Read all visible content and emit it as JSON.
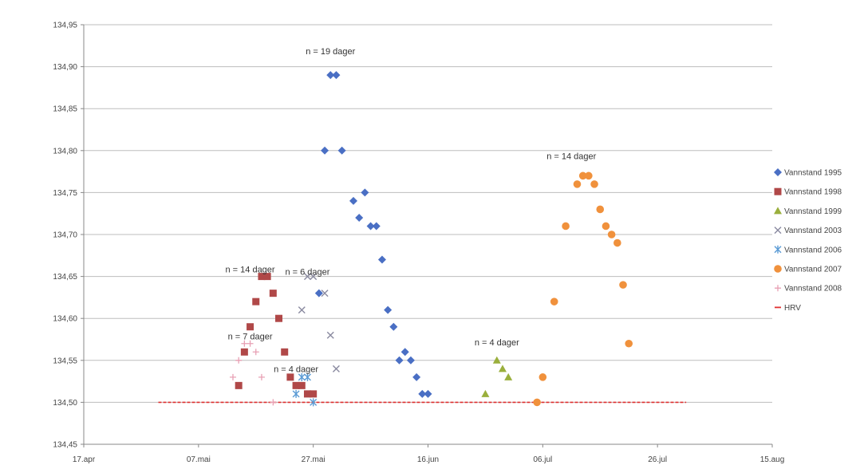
{
  "chart_data": {
    "type": "scatter",
    "title": "",
    "xlabel": "",
    "ylabel": "",
    "x_axis": {
      "type": "date",
      "min": "04-17",
      "max": "08-15",
      "ticks": [
        "17.apr",
        "07.mai",
        "27.mai",
        "16.jun",
        "06.jul",
        "26.jul",
        "15.aug"
      ],
      "tick_dates": [
        "04-17",
        "05-07",
        "05-27",
        "06-16",
        "07-06",
        "07-26",
        "08-15"
      ]
    },
    "y_axis": {
      "min": 134.45,
      "max": 134.95,
      "step": 0.05,
      "ticks": [
        "134,45",
        "134,50",
        "134,55",
        "134,60",
        "134,65",
        "134,70",
        "134,75",
        "134,80",
        "134,85",
        "134,90",
        "134,95"
      ]
    },
    "grid": {
      "horizontal": true,
      "vertical": false
    },
    "legend_position": "right",
    "series": [
      {
        "name": "Vannstand 1995",
        "color": "#4a6fc4",
        "marker": "diamond",
        "points": [
          [
            "05-30",
            134.89
          ],
          [
            "05-31",
            134.89
          ],
          [
            "05-29",
            134.8
          ],
          [
            "06-01",
            134.8
          ],
          [
            "06-03",
            134.74
          ],
          [
            "06-04",
            134.72
          ],
          [
            "06-05",
            134.75
          ],
          [
            "06-06",
            134.71
          ],
          [
            "06-07",
            134.71
          ],
          [
            "06-08",
            134.67
          ],
          [
            "05-28",
            134.63
          ],
          [
            "06-09",
            134.61
          ],
          [
            "06-10",
            134.59
          ],
          [
            "06-12",
            134.56
          ],
          [
            "06-13",
            134.55
          ],
          [
            "06-11",
            134.55
          ],
          [
            "06-14",
            134.53
          ],
          [
            "06-15",
            134.51
          ],
          [
            "06-16",
            134.51
          ]
        ]
      },
      {
        "name": "Vannstand 1998",
        "color": "#b04848",
        "marker": "square",
        "points": [
          [
            "05-14",
            134.52
          ],
          [
            "05-15",
            134.56
          ],
          [
            "05-16",
            134.59
          ],
          [
            "05-17",
            134.62
          ],
          [
            "05-18",
            134.65
          ],
          [
            "05-19",
            134.65
          ],
          [
            "05-20",
            134.63
          ],
          [
            "05-21",
            134.6
          ],
          [
            "05-22",
            134.56
          ],
          [
            "05-23",
            134.53
          ],
          [
            "05-24",
            134.52
          ],
          [
            "05-25",
            134.52
          ],
          [
            "05-26",
            134.51
          ],
          [
            "05-27",
            134.51
          ]
        ]
      },
      {
        "name": "Vannstand 1999",
        "color": "#9aaf3c",
        "marker": "triangle",
        "points": [
          [
            "06-26",
            134.51
          ],
          [
            "06-28",
            134.55
          ],
          [
            "06-29",
            134.54
          ],
          [
            "06-30",
            134.53
          ]
        ]
      },
      {
        "name": "Vannstand 2003",
        "color": "#8a8aa0",
        "marker": "x",
        "points": [
          [
            "05-25",
            134.61
          ],
          [
            "05-26",
            134.65
          ],
          [
            "05-27",
            134.65
          ],
          [
            "05-29",
            134.63
          ],
          [
            "05-30",
            134.58
          ],
          [
            "05-31",
            134.54
          ]
        ]
      },
      {
        "name": "Vannstand 2006",
        "color": "#5b9bd5",
        "marker": "asterisk",
        "points": [
          [
            "05-24",
            134.51
          ],
          [
            "05-25",
            134.53
          ],
          [
            "05-26",
            134.53
          ],
          [
            "05-27",
            134.5
          ]
        ]
      },
      {
        "name": "Vannstand 2007",
        "color": "#f0913c",
        "marker": "circle",
        "points": [
          [
            "07-05",
            134.5
          ],
          [
            "07-06",
            134.53
          ],
          [
            "07-08",
            134.62
          ],
          [
            "07-10",
            134.71
          ],
          [
            "07-12",
            134.76
          ],
          [
            "07-13",
            134.77
          ],
          [
            "07-14",
            134.77
          ],
          [
            "07-15",
            134.76
          ],
          [
            "07-16",
            134.73
          ],
          [
            "07-17",
            134.71
          ],
          [
            "07-18",
            134.7
          ],
          [
            "07-19",
            134.69
          ],
          [
            "07-20",
            134.64
          ],
          [
            "07-21",
            134.57
          ]
        ]
      },
      {
        "name": "Vannstand 2008",
        "color": "#e8a0b4",
        "marker": "plus",
        "points": [
          [
            "05-13",
            134.53
          ],
          [
            "05-14",
            134.55
          ],
          [
            "05-15",
            134.57
          ],
          [
            "05-16",
            134.57
          ],
          [
            "05-17",
            134.56
          ],
          [
            "05-18",
            134.53
          ],
          [
            "05-20",
            134.5
          ]
        ]
      },
      {
        "name": "HRV",
        "color": "#e03030",
        "marker": "dash",
        "line": {
          "from": "04-30",
          "to": "07-31",
          "y": 134.5
        }
      }
    ],
    "annotations": [
      {
        "text": "n = 19 dager",
        "date": "05-30",
        "y": 134.915
      },
      {
        "text": "n = 14 dager",
        "date": "07-11",
        "y": 134.79
      },
      {
        "text": "n =  14 dager",
        "date": "05-16",
        "y": 134.655
      },
      {
        "text": "n = 6 dager",
        "date": "05-26",
        "y": 134.652
      },
      {
        "text": "n = 7 dager",
        "date": "05-16",
        "y": 134.575
      },
      {
        "text": "n = 4 dager",
        "date": "06-28",
        "y": 134.568
      },
      {
        "text": "n = 4 dager",
        "date": "05-24",
        "y": 134.536
      }
    ]
  }
}
